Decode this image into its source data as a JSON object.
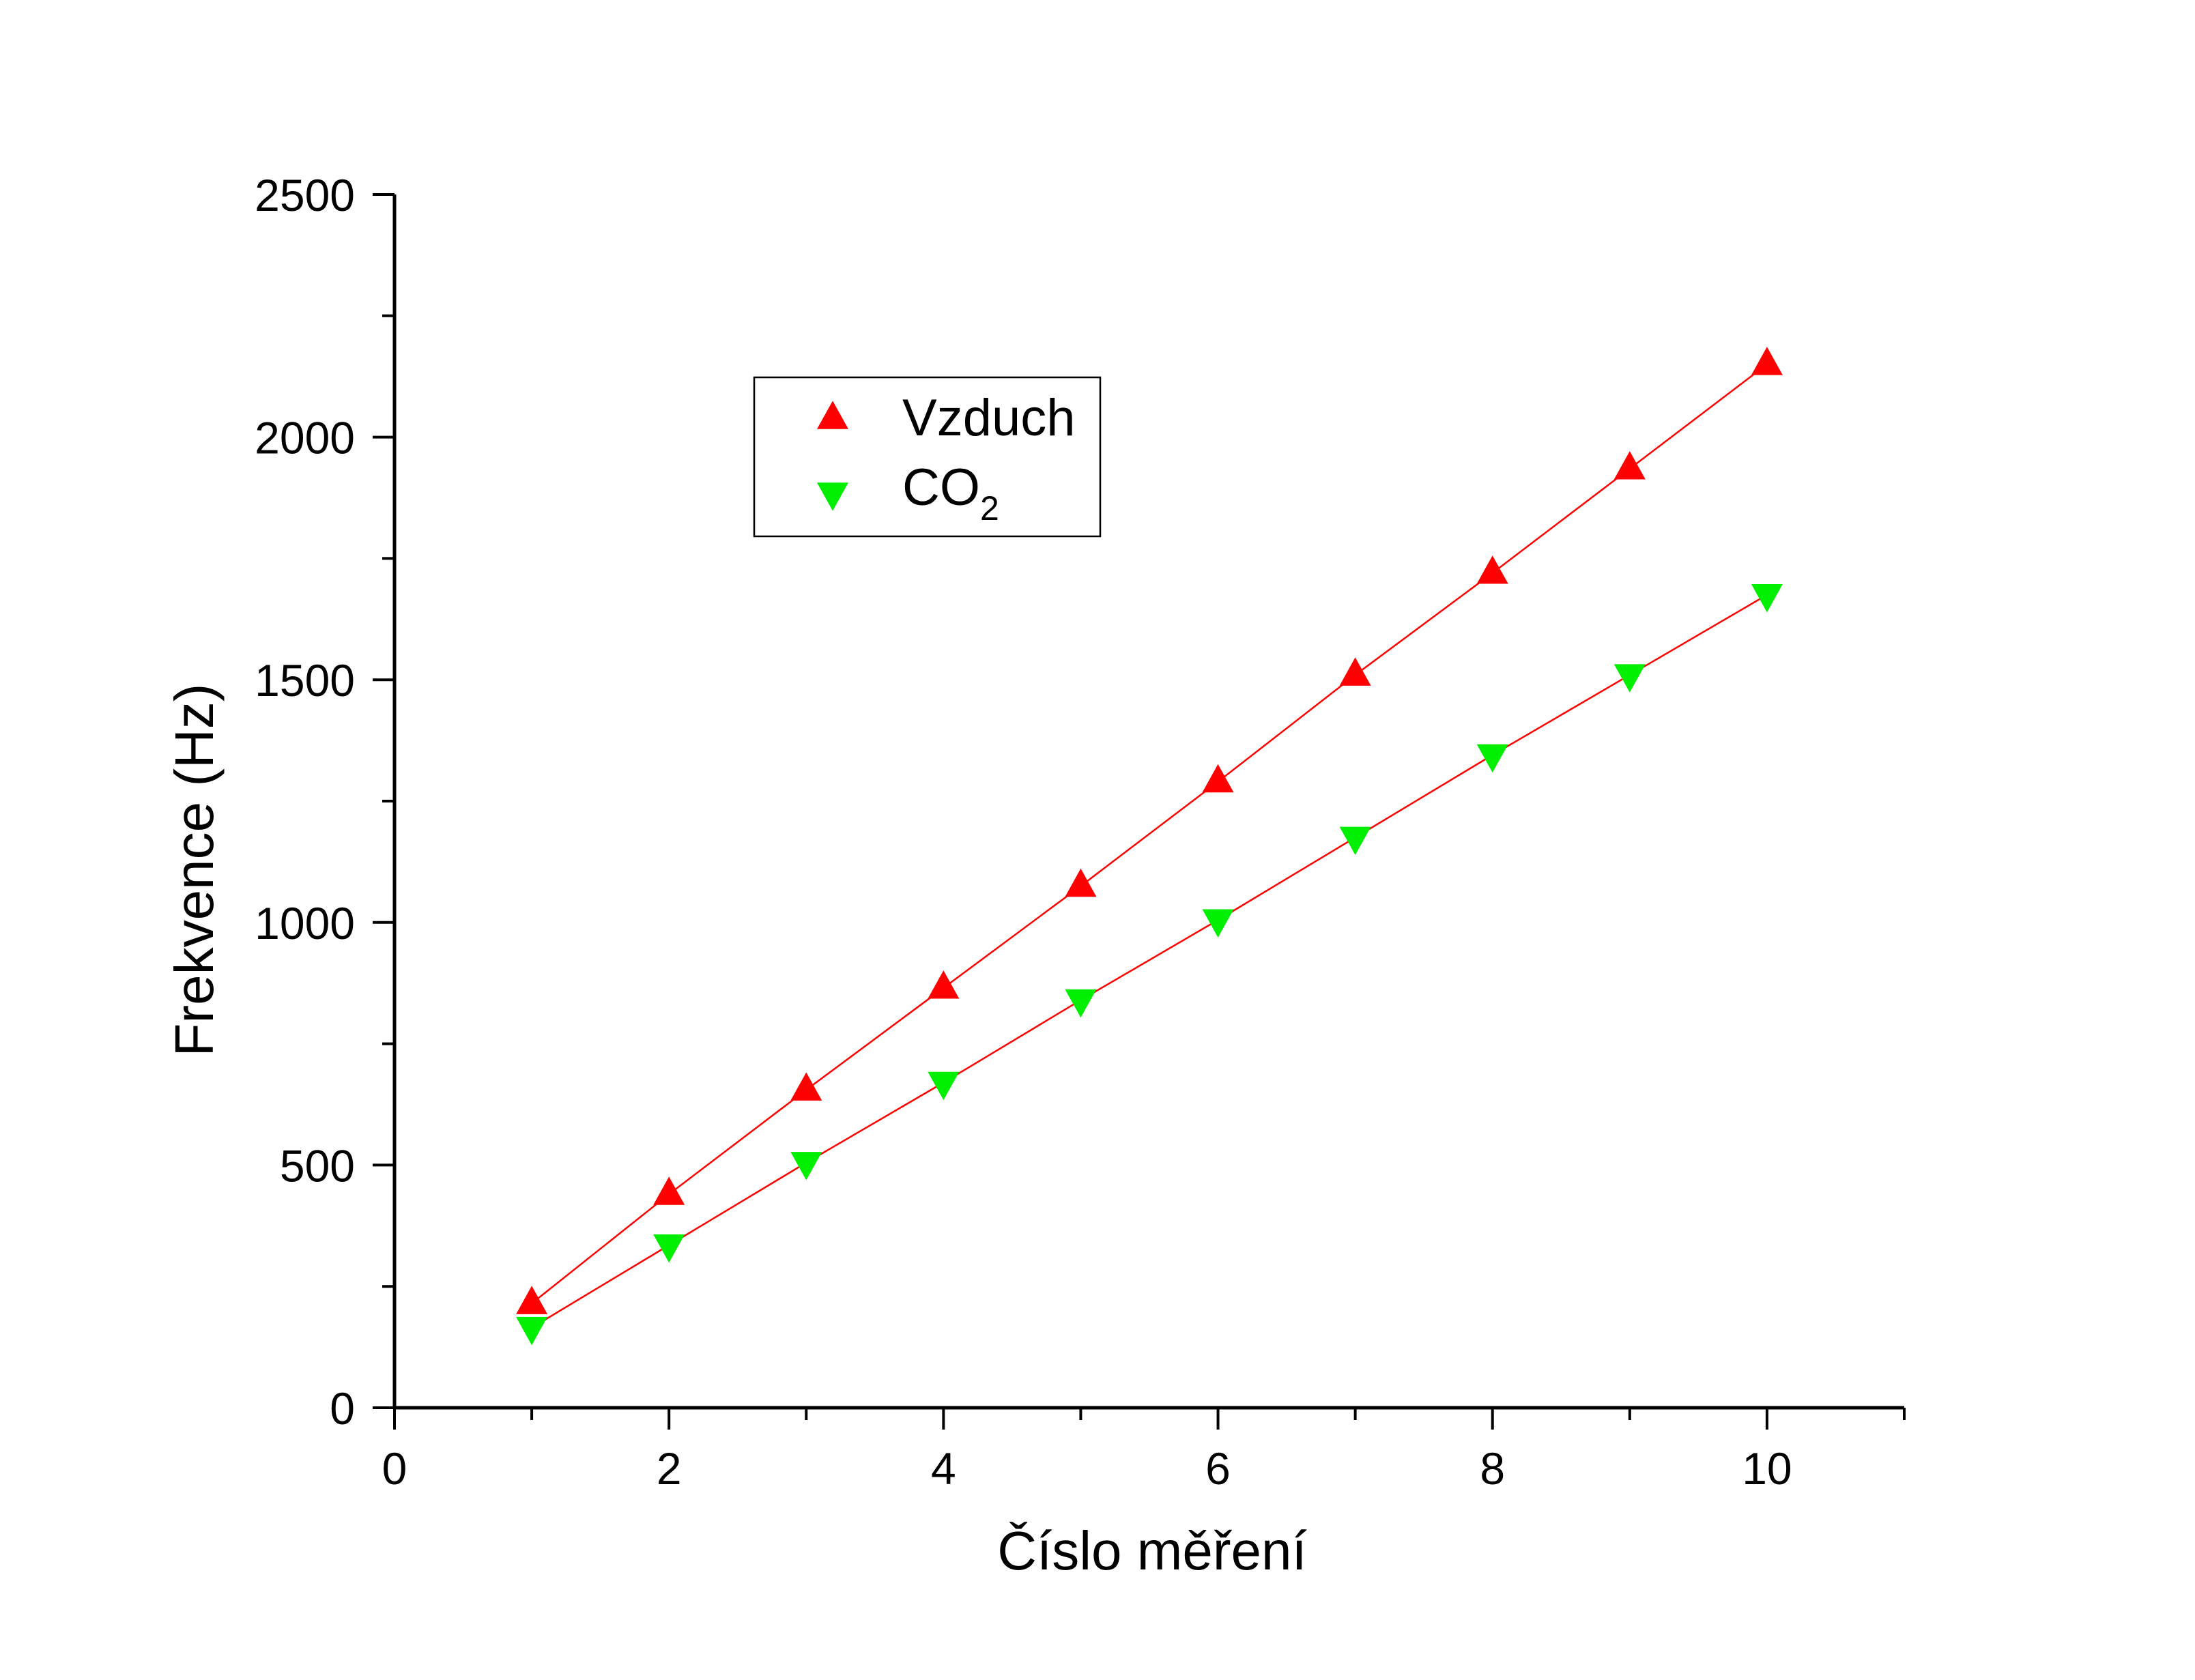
{
  "chart_data": {
    "type": "scatter",
    "title": "",
    "xlabel": "Číslo měření",
    "ylabel": "Frekvence (Hz)",
    "xlim": [
      0,
      11
    ],
    "ylim": [
      0,
      2500
    ],
    "x_ticks": [
      0,
      2,
      4,
      6,
      8,
      10
    ],
    "y_ticks": [
      0,
      500,
      1000,
      1500,
      2000,
      2500
    ],
    "grid": false,
    "legend_position": "top-center",
    "series": [
      {
        "name": "Vzduch",
        "marker": "triangle-up",
        "color": "#ff0000",
        "fit_line": true,
        "x": [
          1,
          2,
          3,
          4,
          5,
          6,
          7,
          8,
          9,
          10
        ],
        "y": [
          215,
          440,
          655,
          865,
          1075,
          1290,
          1510,
          1720,
          1935,
          2150
        ]
      },
      {
        "name": "CO",
        "name_subscript": "2",
        "marker": "triangle-down",
        "color": "#00ee00",
        "fit_line": true,
        "fit_color": "#ff0000",
        "x": [
          1,
          2,
          3,
          4,
          5,
          6,
          7,
          8,
          9,
          10
        ],
        "y": [
          165,
          335,
          505,
          670,
          840,
          1005,
          1175,
          1345,
          1510,
          1675
        ]
      }
    ]
  }
}
